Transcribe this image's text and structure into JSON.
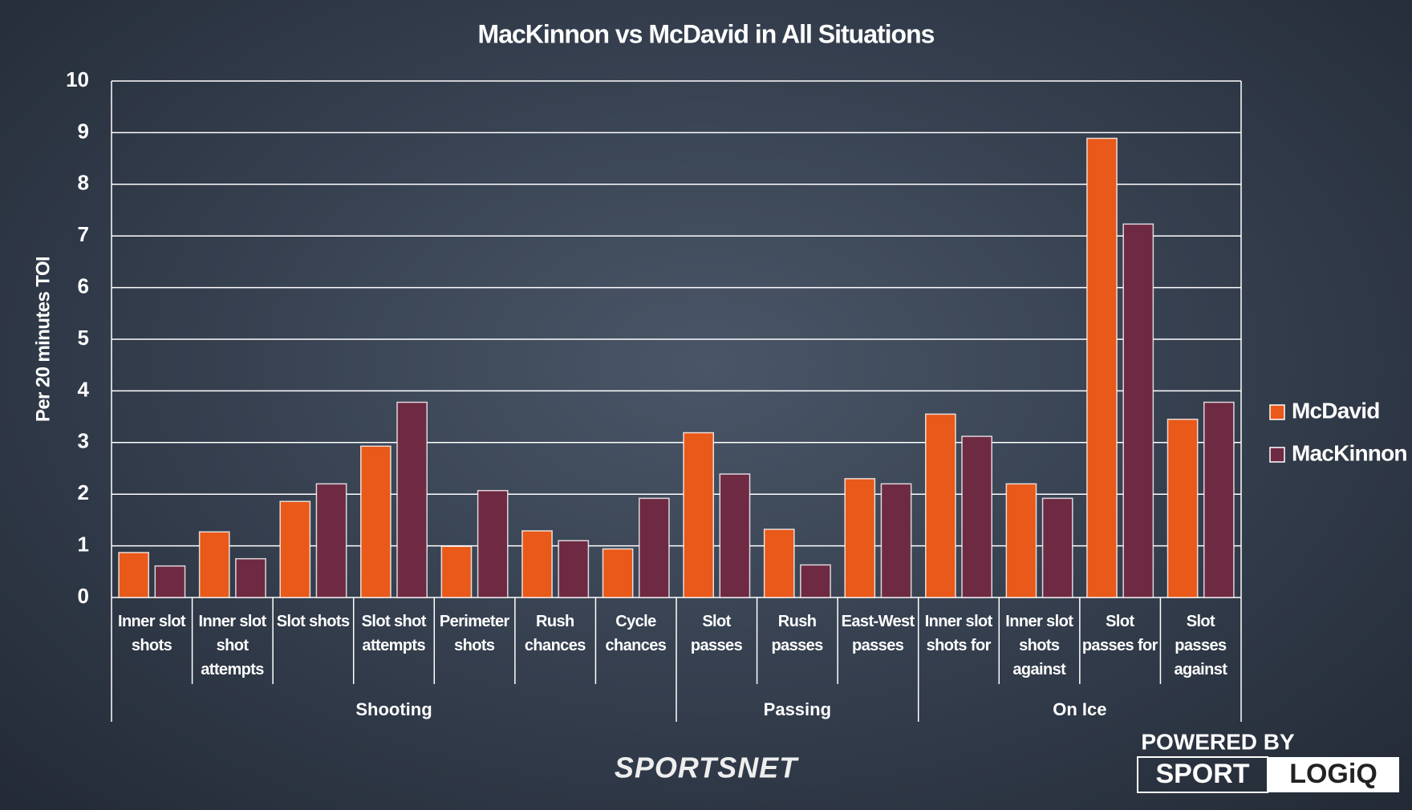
{
  "chart_data": {
    "type": "bar",
    "title": "MacKinnon vs McDavid in All Situations",
    "y_label": "Per 20 minutes TOI",
    "groups": [
      {
        "name": "Shooting",
        "categories": [
          "Inner slot shots",
          "Inner slot shot attempts",
          "Slot shots",
          "Slot shot attempts",
          "Perimeter shots",
          "Rush chances",
          "Cycle chances"
        ]
      },
      {
        "name": "Passing",
        "categories": [
          "Slot passes",
          "Rush passes",
          "East-West passes"
        ]
      },
      {
        "name": "On Ice",
        "categories": [
          "Inner slot shots for",
          "Inner slot shots against",
          "Slot passes for",
          "Slot passes against"
        ]
      }
    ],
    "series": [
      {
        "name": "McDavid",
        "color": "#e8591a",
        "values": [
          0.87,
          1.27,
          1.86,
          2.93,
          0.99,
          1.29,
          0.94,
          3.19,
          1.32,
          2.3,
          3.55,
          2.2,
          8.89,
          3.45
        ]
      },
      {
        "name": "MacKinnon",
        "color": "#6e2a42",
        "values": [
          0.61,
          0.75,
          2.2,
          3.78,
          2.07,
          1.1,
          1.92,
          2.39,
          0.63,
          2.2,
          3.12,
          1.92,
          7.23,
          3.78
        ]
      }
    ],
    "ylim": [
      0,
      10
    ],
    "yticks": [
      0,
      1,
      2,
      3,
      4,
      5,
      6,
      7,
      8,
      9,
      10
    ],
    "grid": true,
    "legend": "right",
    "branding": {
      "network": "SPORTSNET",
      "powered_by": "POWERED BY",
      "logo_left": "SPORT",
      "logo_right": "LOGiQ"
    }
  }
}
